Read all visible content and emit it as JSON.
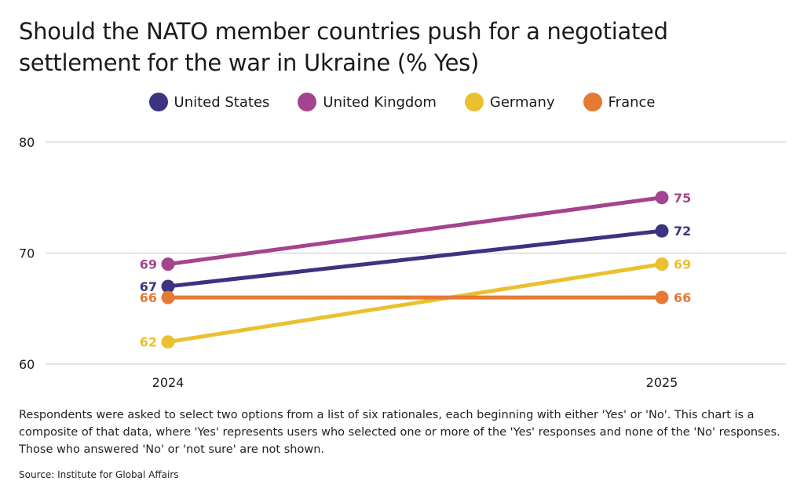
{
  "title": "Should the NATO member countries push for a negotiated settlement for the war in Ukraine (% Yes)",
  "footnote": "Respondents were asked to select two options from a list of six rationales, each beginning with either 'Yes' or 'No'. This chart is a composite of that data, where 'Yes' represents users who selected one or more of the 'Yes' responses and none of the 'No' responses. Those who answered 'No' or 'not sure' are not shown.",
  "source": "Source: Institute for Global Affairs",
  "chart_data": {
    "type": "line",
    "x": [
      "2024",
      "2025"
    ],
    "ylim": [
      60,
      80
    ],
    "yticks": [
      "60",
      "70",
      "80"
    ],
    "grid": true,
    "legend_position": "top-center",
    "series": [
      {
        "name": "United States",
        "color": "#3c3480",
        "values": [
          67,
          72
        ],
        "labels": [
          "67",
          "72"
        ]
      },
      {
        "name": "United Kingdom",
        "color": "#a4448e",
        "values": [
          69,
          75
        ],
        "labels": [
          "69",
          "75"
        ]
      },
      {
        "name": "Germany",
        "color": "#ebc02f",
        "values": [
          62,
          69
        ],
        "labels": [
          "62",
          "69"
        ]
      },
      {
        "name": "France",
        "color": "#e47a34",
        "values": [
          66,
          66
        ],
        "labels": [
          "66",
          "66"
        ]
      }
    ]
  }
}
